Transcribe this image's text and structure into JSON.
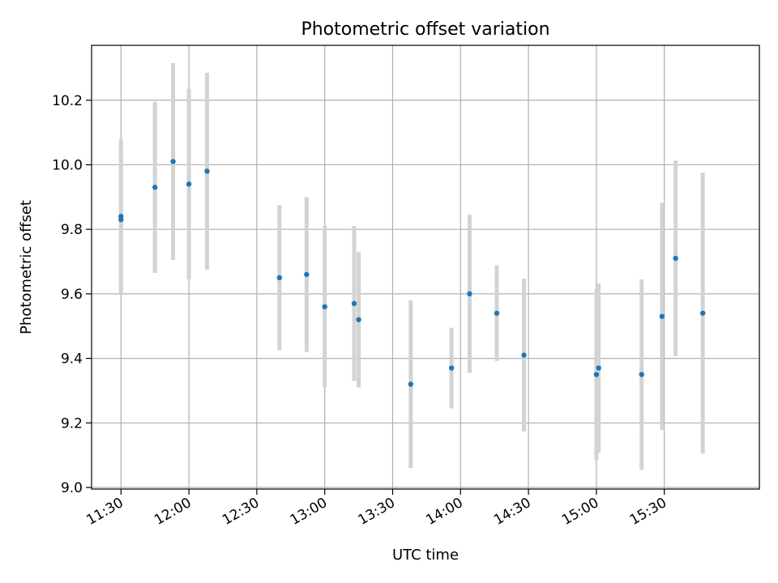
{
  "chart_data": {
    "type": "scatter",
    "title": "Photometric offset variation",
    "xlabel": "UTC time",
    "ylabel": "Photometric offset",
    "xlim": [
      "11:17",
      "16:12"
    ],
    "ylim": [
      8.995,
      10.37
    ],
    "grid": true,
    "x_ticks": [
      "11:30",
      "12:00",
      "12:30",
      "13:00",
      "13:30",
      "14:00",
      "14:30",
      "15:00",
      "15:30"
    ],
    "y_ticks": [
      "9.0",
      "9.2",
      "9.4",
      "9.6",
      "9.8",
      "10.0",
      "10.2"
    ],
    "colors": {
      "marker": "#1f77b4",
      "errorbar": "#d3d3d3",
      "grid": "#b0b0b0"
    },
    "series": [
      {
        "points": [
          {
            "time": "11:30",
            "y": 9.84,
            "err": 0.24
          },
          {
            "time": "11:30",
            "y": 9.83,
            "err": 0.23
          },
          {
            "time": "11:45",
            "y": 9.93,
            "err": 0.265
          },
          {
            "time": "11:53",
            "y": 10.01,
            "err": 0.305
          },
          {
            "time": "12:00",
            "y": 9.94,
            "err": 0.295
          },
          {
            "time": "12:08",
            "y": 9.98,
            "err": 0.305
          },
          {
            "time": "12:40",
            "y": 9.65,
            "err": 0.225
          },
          {
            "time": "12:52",
            "y": 9.66,
            "err": 0.24
          },
          {
            "time": "13:00",
            "y": 9.56,
            "err": 0.25
          },
          {
            "time": "13:13",
            "y": 9.57,
            "err": 0.24
          },
          {
            "time": "13:15",
            "y": 9.52,
            "err": 0.21
          },
          {
            "time": "13:38",
            "y": 9.32,
            "err": 0.26
          },
          {
            "time": "13:56",
            "y": 9.37,
            "err": 0.125
          },
          {
            "time": "14:04",
            "y": 9.6,
            "err": 0.245
          },
          {
            "time": "14:16",
            "y": 9.54,
            "err": 0.148
          },
          {
            "time": "14:28",
            "y": 9.41,
            "err": 0.237
          },
          {
            "time": "15:00",
            "y": 9.35,
            "err": 0.265
          },
          {
            "time": "15:01",
            "y": 9.37,
            "err": 0.262
          },
          {
            "time": "15:20",
            "y": 9.35,
            "err": 0.295
          },
          {
            "time": "15:29",
            "y": 9.53,
            "err": 0.352
          },
          {
            "time": "15:35",
            "y": 9.71,
            "err": 0.303
          },
          {
            "time": "15:47",
            "y": 9.54,
            "err": 0.435
          }
        ]
      }
    ]
  }
}
